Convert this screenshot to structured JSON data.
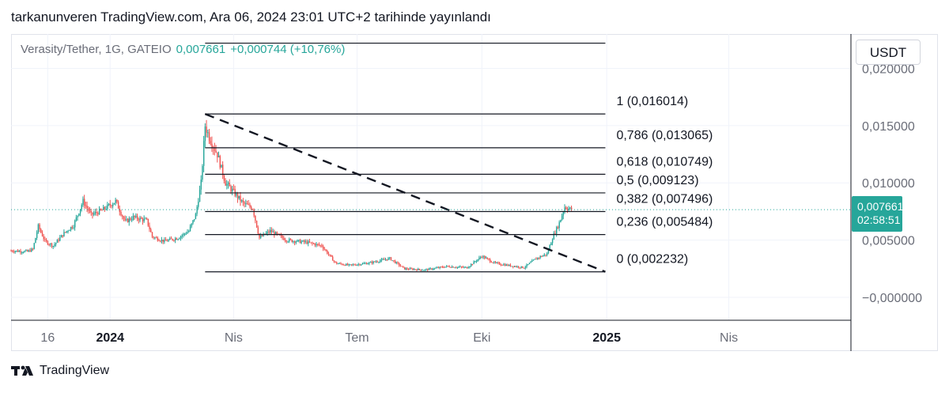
{
  "header": {
    "published_text": "tarkanunveren TradingView.com, Ara 06, 2024 23:01 UTC+2 tarihinde yayınlandı"
  },
  "legend": {
    "symbol": "Verasity/Tether, 1G, GATEIO",
    "last": "0,007661",
    "change": "+0,000744 (+10,76%)"
  },
  "price_scale": {
    "unit": "USDT",
    "labels": [
      "0,020000",
      "0,015000",
      "0,010000",
      "0,005000",
      "−0,000000"
    ],
    "last_price_tag": "0,007661",
    "countdown": "02:58:51"
  },
  "colors": {
    "up": "#26a69a",
    "down": "#ef5350",
    "accent": "#26a69a",
    "fib_line": "#131722"
  },
  "footer": {
    "brand": "TradingView",
    "logo_icon": "tradingview-logo-icon"
  },
  "chart_data": {
    "type": "candlestick",
    "symbol": "Verasity/Tether, 1G, GATEIO",
    "interval": "1G",
    "ylim": [
      -0.002,
      0.023
    ],
    "xlim": [
      "2023-10-20",
      "2025-06-30"
    ],
    "x_ticks": [
      {
        "label": "16",
        "date": "2023-11-16"
      },
      {
        "label": "2024",
        "date": "2024-01-01"
      },
      {
        "label": "Nis",
        "date": "2024-04-01"
      },
      {
        "label": "Tem",
        "date": "2024-07-01"
      },
      {
        "label": "Eki",
        "date": "2024-10-01"
      },
      {
        "label": "2025",
        "date": "2025-01-01"
      },
      {
        "label": "Nis",
        "date": "2025-04-01"
      }
    ],
    "y_ticks": [
      0.02,
      0.015,
      0.01,
      0.005,
      0.0
    ],
    "last_price": 0.007661,
    "price_path": [
      [
        "2023-10-20",
        0.00407
      ],
      [
        "2023-11-01",
        0.004
      ],
      [
        "2023-11-05",
        0.0042
      ],
      [
        "2023-11-09",
        0.0062
      ],
      [
        "2023-11-14",
        0.0049
      ],
      [
        "2023-11-20",
        0.0045
      ],
      [
        "2023-11-28",
        0.0056
      ],
      [
        "2023-12-05",
        0.0063
      ],
      [
        "2023-12-12",
        0.0084
      ],
      [
        "2023-12-18",
        0.0072
      ],
      [
        "2023-12-26",
        0.0076
      ],
      [
        "2024-01-05",
        0.0084
      ],
      [
        "2024-01-12",
        0.0066
      ],
      [
        "2024-01-18",
        0.007
      ],
      [
        "2024-01-28",
        0.0067
      ],
      [
        "2024-02-01",
        0.0053
      ],
      [
        "2024-02-10",
        0.0049
      ],
      [
        "2024-02-20",
        0.0052
      ],
      [
        "2024-02-28",
        0.0058
      ],
      [
        "2024-03-04",
        0.0072
      ],
      [
        "2024-03-08",
        0.01
      ],
      [
        "2024-03-11",
        0.015
      ],
      [
        "2024-03-14",
        0.014
      ],
      [
        "2024-03-20",
        0.0125
      ],
      [
        "2024-03-26",
        0.01
      ],
      [
        "2024-04-01",
        0.0092
      ],
      [
        "2024-04-08",
        0.0082
      ],
      [
        "2024-04-15",
        0.0078
      ],
      [
        "2024-04-20",
        0.0052
      ],
      [
        "2024-04-28",
        0.0058
      ],
      [
        "2024-05-10",
        0.005
      ],
      [
        "2024-05-25",
        0.0048
      ],
      [
        "2024-06-05",
        0.0045
      ],
      [
        "2024-06-15",
        0.003
      ],
      [
        "2024-06-25",
        0.0028
      ],
      [
        "2024-07-10",
        0.003
      ],
      [
        "2024-07-25",
        0.0034
      ],
      [
        "2024-08-05",
        0.0025
      ],
      [
        "2024-08-20",
        0.0024
      ],
      [
        "2024-09-05",
        0.0027
      ],
      [
        "2024-09-20",
        0.0026
      ],
      [
        "2024-10-01",
        0.0036
      ],
      [
        "2024-10-10",
        0.003
      ],
      [
        "2024-10-20",
        0.0028
      ],
      [
        "2024-11-01",
        0.0026
      ],
      [
        "2024-11-10",
        0.0034
      ],
      [
        "2024-11-18",
        0.0038
      ],
      [
        "2024-11-22",
        0.0052
      ],
      [
        "2024-11-27",
        0.0065
      ],
      [
        "2024-12-01",
        0.0079
      ],
      [
        "2024-12-06",
        0.007661
      ]
    ],
    "fibonacci": {
      "start_date": "2024-03-11",
      "end_date": "2024-12-31",
      "levels": [
        {
          "label": "1 (0,016014)",
          "ratio": 1,
          "price": 0.016014
        },
        {
          "label": "0,786 (0,013065)",
          "ratio": 0.786,
          "price": 0.013065
        },
        {
          "label": "0,618 (0,010749)",
          "ratio": 0.618,
          "price": 0.010749
        },
        {
          "label": "0,5 (0,009123)",
          "ratio": 0.5,
          "price": 0.009123
        },
        {
          "label": "0,382 (0,007496)",
          "ratio": 0.382,
          "price": 0.007496
        },
        {
          "label": "0,236 (0,005484)",
          "ratio": 0.236,
          "price": 0.005484
        },
        {
          "label": "0 (0,002232)",
          "ratio": 0,
          "price": 0.002232
        }
      ]
    },
    "trendline": {
      "style": "dashed",
      "from": [
        "2024-03-11",
        0.016014
      ],
      "to": [
        "2024-12-31",
        0.002232
      ]
    },
    "extra_line": {
      "from_date": "2024-03-11",
      "to_date": "2024-12-31",
      "price": 0.0222
    },
    "grid": true
  }
}
